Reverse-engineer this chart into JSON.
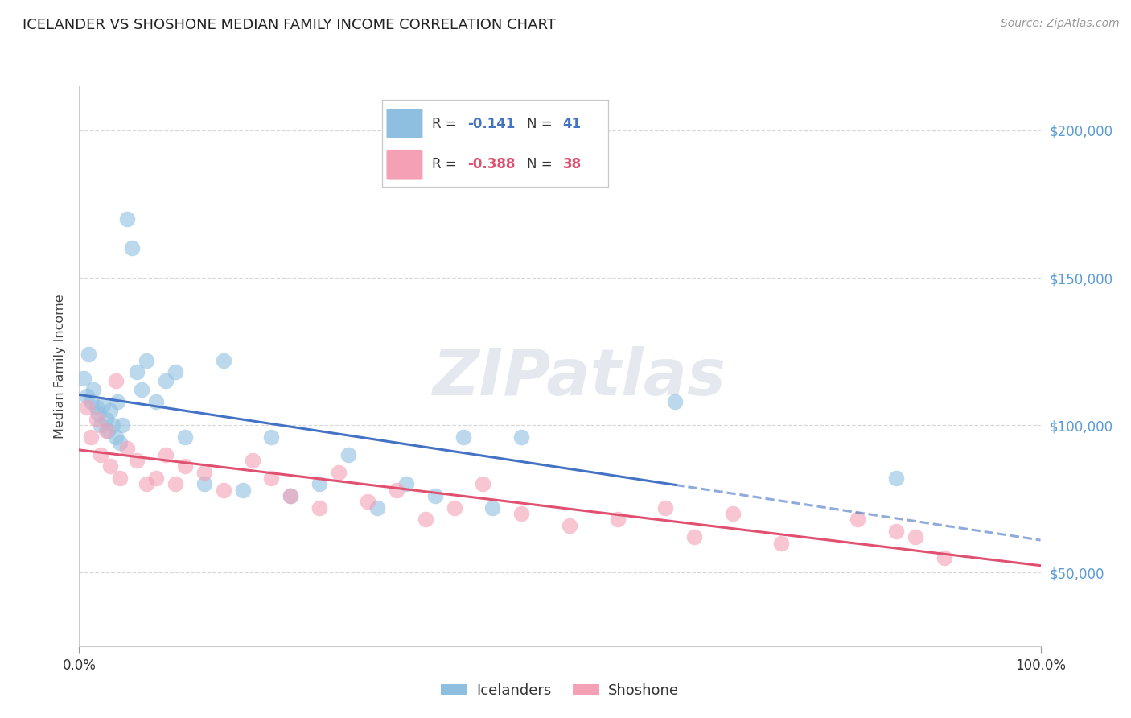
{
  "title": "ICELANDER VS SHOSHONE MEDIAN FAMILY INCOME CORRELATION CHART",
  "source": "Source: ZipAtlas.com",
  "ylabel": "Median Family Income",
  "yticks": [
    50000,
    100000,
    150000,
    200000
  ],
  "ytick_labels": [
    "$50,000",
    "$100,000",
    "$150,000",
    "$200,000"
  ],
  "xlim": [
    0.0,
    1.0
  ],
  "ylim": [
    25000,
    215000
  ],
  "blue_color": "#8fbfe0",
  "pink_color": "#f4a0b5",
  "blue_line_color": "#4472c4",
  "pink_line_color": "#e05070",
  "blue_r": "-0.141",
  "blue_n": "41",
  "pink_r": "-0.388",
  "pink_n": "38",
  "watermark_text": "ZIPatlas",
  "legend_label_blue": "Icelanders",
  "legend_label_pink": "Shoshone",
  "background_color": "#ffffff",
  "grid_color": "#d8d8d8",
  "icelanders_x": [
    0.005,
    0.008,
    0.01,
    0.012,
    0.015,
    0.018,
    0.02,
    0.022,
    0.025,
    0.028,
    0.03,
    0.032,
    0.035,
    0.038,
    0.04,
    0.042,
    0.045,
    0.05,
    0.055,
    0.06,
    0.065,
    0.07,
    0.08,
    0.09,
    0.1,
    0.11,
    0.13,
    0.15,
    0.17,
    0.2,
    0.22,
    0.25,
    0.28,
    0.31,
    0.34,
    0.37,
    0.4,
    0.43,
    0.46,
    0.62,
    0.85
  ],
  "icelanders_y": [
    116000,
    110000,
    124000,
    108000,
    112000,
    106000,
    104000,
    100000,
    107000,
    102000,
    98000,
    105000,
    100000,
    96000,
    108000,
    94000,
    100000,
    170000,
    160000,
    118000,
    112000,
    122000,
    108000,
    115000,
    118000,
    96000,
    80000,
    122000,
    78000,
    96000,
    76000,
    80000,
    90000,
    72000,
    80000,
    76000,
    96000,
    72000,
    96000,
    108000,
    82000
  ],
  "shoshone_x": [
    0.008,
    0.012,
    0.018,
    0.022,
    0.028,
    0.032,
    0.038,
    0.042,
    0.05,
    0.06,
    0.07,
    0.08,
    0.09,
    0.1,
    0.11,
    0.13,
    0.15,
    0.18,
    0.2,
    0.22,
    0.25,
    0.27,
    0.3,
    0.33,
    0.36,
    0.39,
    0.42,
    0.46,
    0.51,
    0.56,
    0.61,
    0.64,
    0.68,
    0.73,
    0.81,
    0.85,
    0.87,
    0.9
  ],
  "shoshone_y": [
    106000,
    96000,
    102000,
    90000,
    98000,
    86000,
    115000,
    82000,
    92000,
    88000,
    80000,
    82000,
    90000,
    80000,
    86000,
    84000,
    78000,
    88000,
    82000,
    76000,
    72000,
    84000,
    74000,
    78000,
    68000,
    72000,
    80000,
    70000,
    66000,
    68000,
    72000,
    62000,
    70000,
    60000,
    68000,
    64000,
    62000,
    55000
  ]
}
